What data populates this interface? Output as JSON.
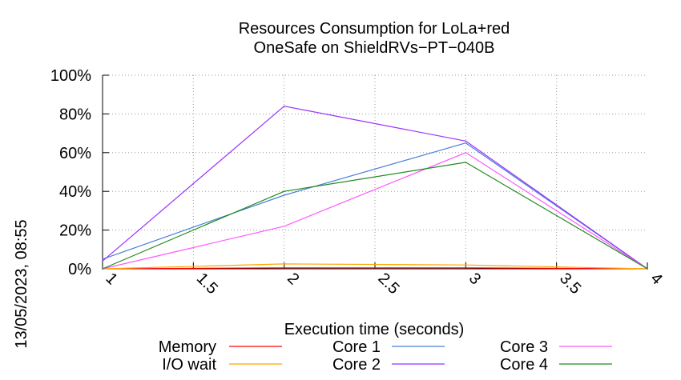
{
  "chart_data": {
    "type": "line",
    "title": "Resources Consumption for LoLa+red",
    "subtitle": "OneSafe on ShieldRVs−PT−040B",
    "xlabel": "Execution time (seconds)",
    "ylabel": "",
    "xlim": [
      1,
      4
    ],
    "ylim": [
      0,
      100
    ],
    "x_ticks": [
      "1",
      "1.5",
      "2",
      "2.5",
      "3",
      "3.5",
      "4"
    ],
    "y_ticks": [
      "0%",
      "20%",
      "40%",
      "60%",
      "80%",
      "100%"
    ],
    "grid": true,
    "legend_position": "bottom",
    "x": [
      1,
      2,
      3,
      4
    ],
    "series": [
      {
        "name": "Memory",
        "color": "#ff0000",
        "values": [
          0,
          0.5,
          0.5,
          0
        ]
      },
      {
        "name": "I/O wait",
        "color": "#ffa500",
        "values": [
          0,
          2.5,
          2,
          0
        ]
      },
      {
        "name": "Core 1",
        "color": "#4a7fd4",
        "values": [
          5,
          38,
          65,
          0
        ]
      },
      {
        "name": "Core 2",
        "color": "#9b30ff",
        "values": [
          4,
          84,
          66,
          0
        ]
      },
      {
        "name": "Core 3",
        "color": "#ff55ff",
        "values": [
          0,
          22,
          60,
          0
        ]
      },
      {
        "name": "Core 4",
        "color": "#228b22",
        "values": [
          0,
          40,
          55,
          0
        ]
      }
    ]
  },
  "timestamp": "13/05/2023, 08:55"
}
